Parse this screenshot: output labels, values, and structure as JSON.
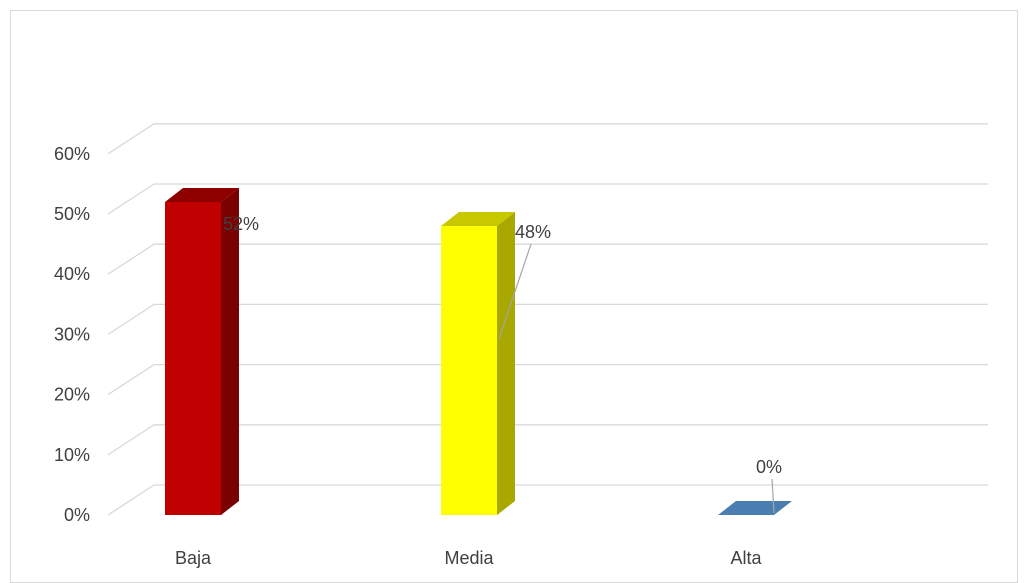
{
  "chart_data": {
    "type": "bar",
    "style": "3d-column",
    "categories": [
      "Baja",
      "Media",
      "Alta"
    ],
    "values": [
      52,
      48,
      0
    ],
    "data_labels": [
      "52%",
      "48%",
      "0%"
    ],
    "y_ticks": [
      "0%",
      "10%",
      "20%",
      "30%",
      "40%",
      "50%",
      "60%"
    ],
    "ylim": [
      0,
      60
    ],
    "grid": true,
    "legend": "none",
    "colors": {
      "Baja": {
        "front": "#c00000",
        "side": "#7b0000",
        "top": "#8e0000"
      },
      "Media": {
        "front": "#ffff00",
        "side": "#a8a800",
        "top": "#c8c800"
      },
      "Alta": {
        "front": "#4a7eb0",
        "side": "#2f5f8c",
        "top": "#4a7eb0"
      },
      "grid": "#d9d9d9",
      "text": "#404040",
      "leader": "#a6a6a6"
    }
  }
}
